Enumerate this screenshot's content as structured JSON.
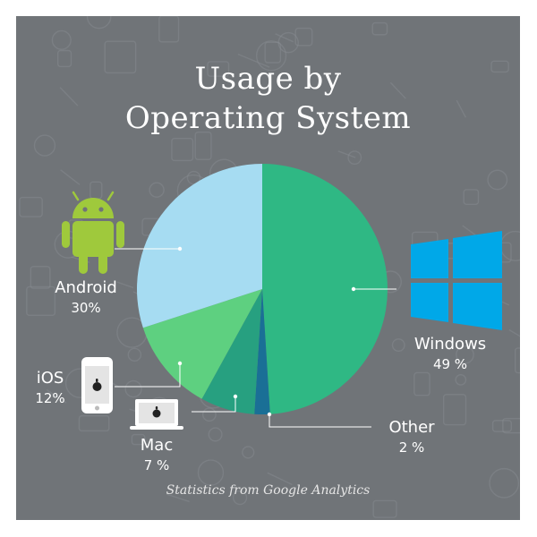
{
  "title_lines": [
    "Usage by",
    "Operating System"
  ],
  "footer": "Statistics from Google Analytics",
  "icons": [
    "android-icon",
    "windows-icon",
    "iphone-icon",
    "macbook-icon"
  ],
  "colors": {
    "background": "#707478",
    "Windows": "#2fb884",
    "Other": "#1a6f96",
    "Mac": "#27a080",
    "iOS": "#5ed080",
    "Android": "#a6dcf2",
    "android_green": "#9fc93c",
    "windows_blue": "#00a8e8"
  },
  "labels": {
    "Android": {
      "name": "Android",
      "pct": "30%"
    },
    "Windows": {
      "name": "Windows",
      "pct": "49 %"
    },
    "Other": {
      "name": "Other",
      "pct": "2 %"
    },
    "Mac": {
      "name": "Mac",
      "pct": "7 %"
    },
    "iOS": {
      "name": "iOS",
      "pct": "12%"
    }
  },
  "chart_data": {
    "type": "pie",
    "title": "Usage by Operating System",
    "categories": [
      "Windows",
      "Other",
      "Mac",
      "iOS",
      "Android"
    ],
    "values": [
      49,
      2,
      7,
      12,
      30
    ],
    "start": "12 o'clock",
    "direction": "clockwise"
  }
}
